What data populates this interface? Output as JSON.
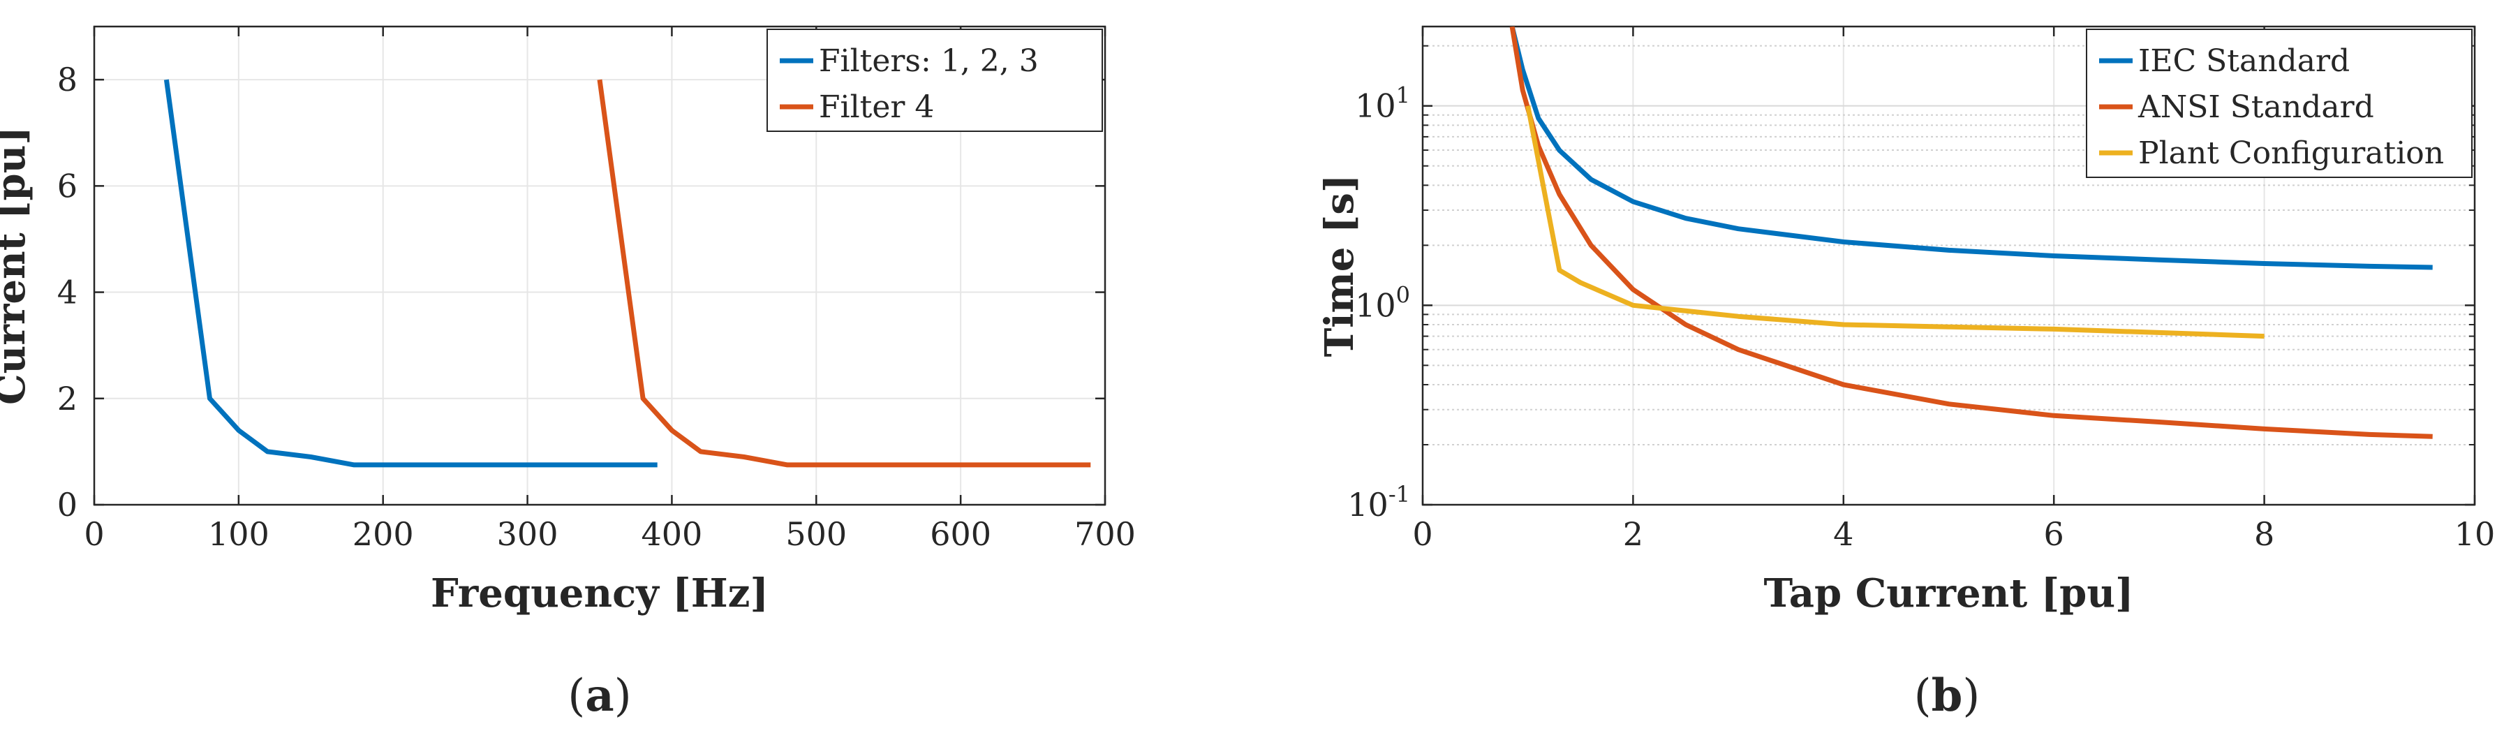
{
  "chart_data": [
    {
      "type": "line",
      "panel_label": "(a)",
      "title": "",
      "xlabel": "Frequency [Hz]",
      "ylabel": "Current [pu]",
      "xlim": [
        0,
        700
      ],
      "ylim": [
        0,
        9
      ],
      "xticks": [
        0,
        100,
        200,
        300,
        400,
        500,
        600,
        700
      ],
      "xtick_labels": [
        "0",
        "100",
        "200",
        "300",
        "400",
        "500",
        "600",
        "700"
      ],
      "yticks": [
        0,
        2,
        4,
        6,
        8
      ],
      "ytick_labels": [
        "0",
        "2",
        "4",
        "6",
        "8"
      ],
      "grid": true,
      "legend_position": "top-right",
      "series": [
        {
          "name": "Filters: 1, 2, 3",
          "color": "#0072BD",
          "x": [
            50,
            80,
            100,
            120,
            150,
            180,
            390
          ],
          "y": [
            8,
            2,
            1.4,
            1.0,
            0.9,
            0.75,
            0.75
          ]
        },
        {
          "name": "Filter 4",
          "color": "#D95319",
          "x": [
            350,
            380,
            400,
            420,
            450,
            480,
            690
          ],
          "y": [
            8,
            2,
            1.4,
            1.0,
            0.9,
            0.75,
            0.75
          ]
        }
      ]
    },
    {
      "type": "line",
      "panel_label": "(b)",
      "title": "",
      "xlabel": "Tap Current [pu]",
      "ylabel": "Time [s]",
      "yscale": "log",
      "xlim": [
        0,
        10
      ],
      "ylim": [
        0.1,
        25
      ],
      "xticks": [
        0,
        2,
        4,
        6,
        8,
        10
      ],
      "xtick_labels": [
        "0",
        "2",
        "4",
        "6",
        "8",
        "10"
      ],
      "yticks": [
        0.1,
        1,
        10
      ],
      "ytick_labels": [
        {
          "base": "10",
          "exp": "-1"
        },
        {
          "base": "10",
          "exp": "0"
        },
        {
          "base": "10",
          "exp": "1"
        }
      ],
      "grid": true,
      "legend_position": "top-right",
      "series": [
        {
          "name": "IEC Standard",
          "color": "#0072BD",
          "x": [
            0.85,
            0.95,
            1.1,
            1.3,
            1.6,
            2,
            2.5,
            3,
            4,
            5,
            6,
            7,
            8,
            9,
            9.6
          ],
          "y": [
            25,
            15.2,
            8.67,
            5.99,
            4.28,
            3.31,
            2.73,
            2.42,
            2.08,
            1.89,
            1.77,
            1.69,
            1.62,
            1.57,
            1.55
          ]
        },
        {
          "name": "ANSI Standard",
          "color": "#D95319",
          "x": [
            0.85,
            0.95,
            1.1,
            1.3,
            1.6,
            2,
            2.5,
            3,
            4,
            5,
            6,
            7,
            8,
            9,
            9.6
          ],
          "y": [
            25,
            12,
            6.3,
            3.6,
            2.0,
            1.2,
            0.8,
            0.6,
            0.4,
            0.32,
            0.28,
            0.26,
            0.24,
            0.225,
            0.22
          ]
        },
        {
          "name": "Plant Configuration",
          "color": "#EDB120",
          "x": [
            1.0,
            1.3,
            1.5,
            2,
            3,
            4,
            5,
            6,
            7,
            8
          ],
          "y": [
            10,
            1.5,
            1.3,
            1.0,
            0.88,
            0.8,
            0.78,
            0.76,
            0.73,
            0.7
          ]
        }
      ]
    }
  ]
}
